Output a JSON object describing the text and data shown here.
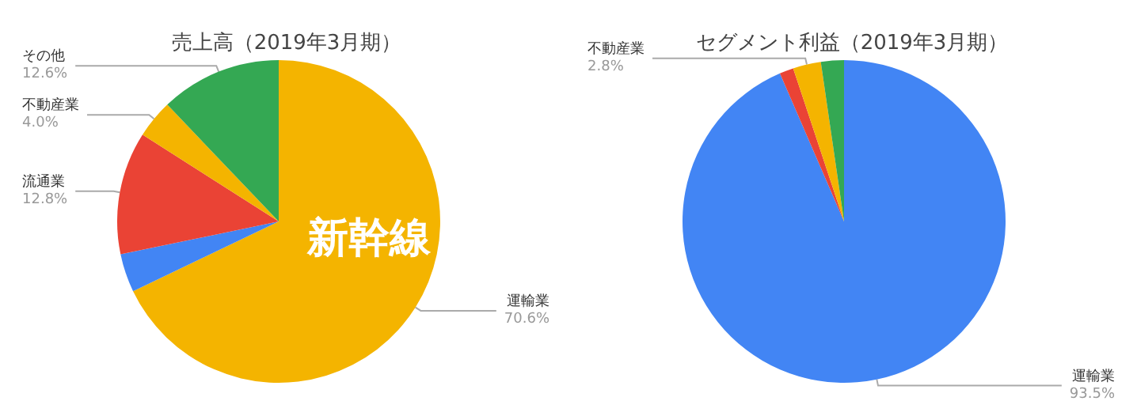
{
  "chart_data": [
    {
      "type": "pie",
      "title": "売上高（2019年3月期）",
      "categories": [
        "運輸業",
        null,
        "流通業",
        "不動産業",
        "その他"
      ],
      "values": [
        70.6,
        4.0,
        12.8,
        4.0,
        12.6
      ],
      "colors": [
        "#f4b400",
        "#4285f4",
        "#ea4335",
        "#f4b400",
        "#34a853"
      ],
      "value_labels": [
        "70.6%",
        null,
        "12.8%",
        "4.0%",
        "12.6%"
      ],
      "annotations": [
        "新幹線"
      ],
      "legend": false
    },
    {
      "type": "pie",
      "title": "セグメント利益（2019年3月期）",
      "categories": [
        "運輸業",
        null,
        "不動産業",
        null
      ],
      "values": [
        93.5,
        1.4,
        2.8,
        2.3
      ],
      "colors": [
        "#4285f4",
        "#ea4335",
        "#f4b400",
        "#34a853"
      ],
      "value_labels": [
        "93.5%",
        null,
        "2.8%",
        null
      ],
      "legend": false
    }
  ]
}
